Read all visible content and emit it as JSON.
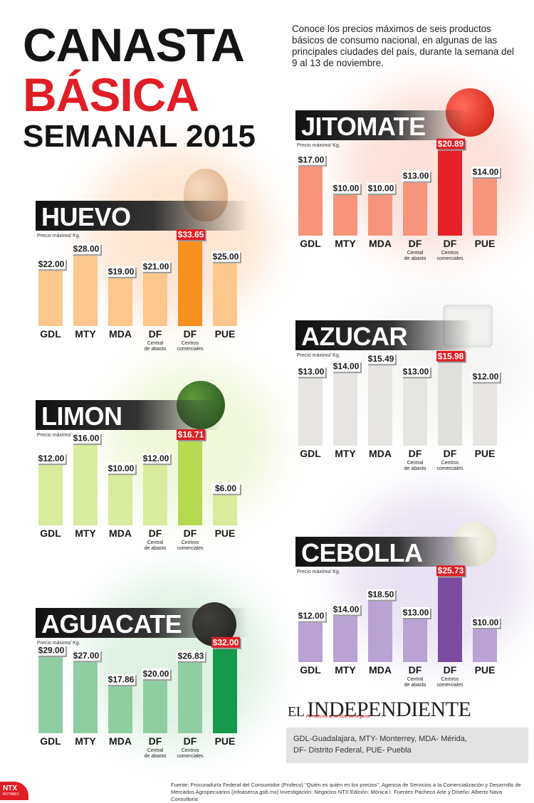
{
  "header": {
    "title_line1": "CANASTA",
    "title_line2": "BÁSICA",
    "title_line3": "SEMANAL 2015",
    "intro": "Conoce los precios máximos de seis productos básicos de consumo nacional, en algunas de las principales ciudades del país, durante la semana del 9 al 13 de noviembre."
  },
  "common": {
    "unit_label": "Precio máximo/ Kg.",
    "sub_labels": [
      "",
      "",
      "",
      "Central de abasto",
      "Centros comerciales",
      ""
    ]
  },
  "chart_data": [
    {
      "type": "bar",
      "title": "HUEVO",
      "categories": [
        "GDL",
        "MTY",
        "MDA",
        "DF",
        "DF",
        "PUE"
      ],
      "values": [
        22.0,
        28.0,
        19.0,
        21.0,
        33.65,
        25.0
      ],
      "value_labels": [
        "$22.00",
        "$28.00",
        "$19.00",
        "$21.00",
        "$33.65",
        "$25.00"
      ],
      "highlight": 4,
      "ylim": [
        0,
        34
      ],
      "bar_color": "#fbc78c",
      "highlight_color": "#f7901e",
      "glow_color": "#fbd2b0"
    },
    {
      "type": "bar",
      "title": "JITOMATE",
      "categories": [
        "GDL",
        "MTY",
        "MDA",
        "DF",
        "DF",
        "PUE"
      ],
      "values": [
        17.0,
        10.0,
        10.0,
        13.0,
        20.89,
        14.0
      ],
      "value_labels": [
        "$17.00",
        "$10.00",
        "$10.00",
        "$13.00",
        "$20.89",
        "$14.00"
      ],
      "highlight": 4,
      "ylim": [
        0,
        21
      ],
      "bar_color": "#f7947c",
      "highlight_color": "#e8202a",
      "glow_color": "#f9c9bc"
    },
    {
      "type": "bar",
      "title": "LIMON",
      "categories": [
        "GDL",
        "MTY",
        "MDA",
        "DF",
        "DF",
        "PUE"
      ],
      "values": [
        12.0,
        16.0,
        10.0,
        12.0,
        16.71,
        6.0
      ],
      "value_labels": [
        "$12.00",
        "$16.00",
        "$10.00",
        "$12.00",
        "$16.71",
        "$6.00"
      ],
      "highlight": 4,
      "ylim": [
        0,
        17
      ],
      "bar_color": "#d9eb9c",
      "highlight_color": "#b5d950",
      "glow_color": "#e4f1bf"
    },
    {
      "type": "bar",
      "title": "AZUCAR",
      "categories": [
        "GDL",
        "MTY",
        "MDA",
        "DF",
        "DF",
        "PUE"
      ],
      "values": [
        13.0,
        14.0,
        15.49,
        13.0,
        15.98,
        12.0
      ],
      "value_labels": [
        "$13.00",
        "$14.00",
        "$15.49",
        "$13.00",
        "$15.98",
        "$12.00"
      ],
      "highlight": 4,
      "ylim": [
        0,
        16.5
      ],
      "bar_color": "#e6e5e1",
      "highlight_color": "#e0dfdb",
      "glow_color": "#eeeeec"
    },
    {
      "type": "bar",
      "title": "AGUACATE",
      "categories": [
        "GDL",
        "MTY",
        "MDA",
        "DF",
        "DF",
        "PUE"
      ],
      "values": [
        29.0,
        27.0,
        17.86,
        20.0,
        26.83,
        32.0
      ],
      "value_labels": [
        "$29.00",
        "$27.00",
        "$17.86",
        "$20.00",
        "$26.83",
        "$32.00"
      ],
      "highlight": 5,
      "ylim": [
        0,
        32.5
      ],
      "bar_color": "#8fcea3",
      "highlight_color": "#16994a",
      "glow_color": "#c4e6cc"
    },
    {
      "type": "bar",
      "title": "CEBOLLA",
      "categories": [
        "GDL",
        "MTY",
        "MDA",
        "DF",
        "DF",
        "PUE"
      ],
      "values": [
        12.0,
        14.0,
        18.5,
        13.0,
        25.73,
        10.0
      ],
      "value_labels": [
        "$12.00",
        "$14.00",
        "$18.50",
        "$13.00",
        "$25.73",
        "$10.00"
      ],
      "highlight": 4,
      "ylim": [
        0,
        26
      ],
      "bar_color": "#b9a2d4",
      "highlight_color": "#7b4b9f",
      "glow_color": "#d8cbe8"
    }
  ],
  "footer": {
    "logo_el": "EL",
    "logo_name": "INDEPENDIENTE",
    "logo_tag": "Periodismo al servicio de la gente",
    "legend_line1": "GDL-Guadalajara, MTY- Monterrey, MDA- Mérida,",
    "legend_line2": "DF- Distrito Federal, PUE- Puebla",
    "source": "Fuente: Procuraduría Federal del Consumidor (Profeco) \"Quién es quién en los precios\", Agencia de Servicios a la Comercialización y Desarrollo de Mercados Agropecuarios (infoaserca.gob.mx) Investigación: Negocios NTX Edición: Mónica I. Fuentes Pacheco Arte y Diseño: Alberto Nava Consultoria",
    "ntx": "NTX",
    "ntx_sub": "NOTIMEX"
  }
}
